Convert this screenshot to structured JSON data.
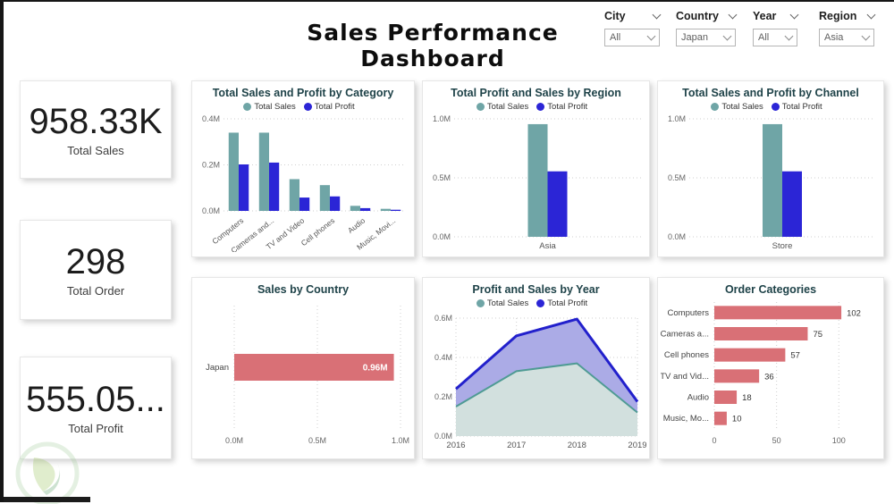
{
  "page": {
    "title": "Sales Performance Dashboard"
  },
  "filters": [
    {
      "label": "City",
      "value": "All"
    },
    {
      "label": "Country",
      "value": "Japan"
    },
    {
      "label": "Year",
      "value": "All"
    },
    {
      "label": "Region",
      "value": "Asia"
    }
  ],
  "kpis": [
    {
      "value": "958.33K",
      "label": "Total Sales"
    },
    {
      "value": "298",
      "label": "Total Order"
    },
    {
      "value": "555.05...",
      "label": "Total Profit"
    }
  ],
  "palette": {
    "teal": "#6FA5A6",
    "blue": "#2B25D6",
    "salmon": "#D97076",
    "chart_title": "#1F4349",
    "grid": "#cfcfcf",
    "axis_text": "#666666"
  },
  "chart_data": [
    {
      "type": "bar",
      "title": "Total Sales and Profit by Category",
      "legend": true,
      "rotate_labels": true,
      "categories": [
        "Computers",
        "Cameras and...",
        "TV and Video",
        "Cell phones",
        "Audio",
        "Music, Movi..."
      ],
      "series": [
        {
          "name": "Total Sales",
          "color": "#6FA5A6",
          "values": [
            0.34,
            0.34,
            0.138,
            0.112,
            0.022,
            0.009
          ]
        },
        {
          "name": "Total Profit",
          "color": "#2B25D6",
          "values": [
            0.202,
            0.21,
            0.058,
            0.063,
            0.012,
            0.005
          ]
        }
      ],
      "ylim": [
        0,
        0.4
      ],
      "yticks": [
        {
          "v": 0,
          "label": "0.0M"
        },
        {
          "v": 0.2,
          "label": "0.2M"
        },
        {
          "v": 0.4,
          "label": "0.4M"
        }
      ]
    },
    {
      "type": "bar",
      "title": "Total Profit and Sales by Region",
      "legend": true,
      "rotate_labels": false,
      "categories": [
        "Asia"
      ],
      "series": [
        {
          "name": "Total Sales",
          "color": "#6FA5A6",
          "values": [
            0.955
          ]
        },
        {
          "name": "Total Profit",
          "color": "#2B25D6",
          "values": [
            0.555
          ]
        }
      ],
      "ylim": [
        0,
        1.0
      ],
      "yticks": [
        {
          "v": 0,
          "label": "0.0M"
        },
        {
          "v": 0.5,
          "label": "0.5M"
        },
        {
          "v": 1.0,
          "label": "1.0M"
        }
      ]
    },
    {
      "type": "bar",
      "title": "Total Sales and Profit by Channel",
      "legend": true,
      "rotate_labels": false,
      "categories": [
        "Store"
      ],
      "series": [
        {
          "name": "Total Sales",
          "color": "#6FA5A6",
          "values": [
            0.955
          ]
        },
        {
          "name": "Total Profit",
          "color": "#2B25D6",
          "values": [
            0.555
          ]
        }
      ],
      "ylim": [
        0,
        1.0
      ],
      "yticks": [
        {
          "v": 0,
          "label": "0.0M"
        },
        {
          "v": 0.5,
          "label": "0.5M"
        },
        {
          "v": 1.0,
          "label": "1.0M"
        }
      ]
    },
    {
      "type": "hbar",
      "title": "Sales by Country",
      "legend": false,
      "categories": [
        "Japan"
      ],
      "values": [
        0.96
      ],
      "value_labels": [
        "0.96M"
      ],
      "labels_inside": true,
      "color": "#D97076",
      "xlim": [
        0,
        1.0
      ],
      "xticks": [
        {
          "v": 0,
          "label": "0.0M"
        },
        {
          "v": 0.5,
          "label": "0.5M"
        },
        {
          "v": 1.0,
          "label": "1.0M"
        }
      ]
    },
    {
      "type": "area",
      "title": "Profit and Sales by Year",
      "legend": true,
      "x": [
        "2016",
        "2017",
        "2018",
        "2019"
      ],
      "series": [
        {
          "name": "Total Sales",
          "color": "#6FA5A6",
          "line": "#4F9B94",
          "fill": "#D2E0DE",
          "values": [
            0.15,
            0.33,
            0.37,
            0.12
          ]
        },
        {
          "name": "Total Profit",
          "color": "#2B25D6",
          "line": "#2220CC",
          "fill": "#ABABE6",
          "values": [
            0.24,
            0.51,
            0.595,
            0.175
          ]
        }
      ],
      "ylim": [
        0,
        0.6
      ],
      "yticks": [
        {
          "v": 0,
          "label": "0.0M"
        },
        {
          "v": 0.2,
          "label": "0.2M"
        },
        {
          "v": 0.4,
          "label": "0.4M"
        },
        {
          "v": 0.6,
          "label": "0.6M"
        }
      ]
    },
    {
      "type": "hbar",
      "title": "Order Categories",
      "legend": false,
      "categories": [
        "Computers",
        "Cameras a...",
        "Cell phones",
        "TV and Vid...",
        "Audio",
        "Music, Mo..."
      ],
      "values": [
        102,
        75,
        57,
        36,
        18,
        10
      ],
      "value_labels": [
        "102",
        "75",
        "57",
        "36",
        "18",
        "10"
      ],
      "labels_inside": false,
      "color": "#D97076",
      "xlim": [
        0,
        112
      ],
      "xticks": [
        {
          "v": 0,
          "label": "0"
        },
        {
          "v": 50,
          "label": "50"
        },
        {
          "v": 100,
          "label": "100"
        }
      ]
    }
  ]
}
